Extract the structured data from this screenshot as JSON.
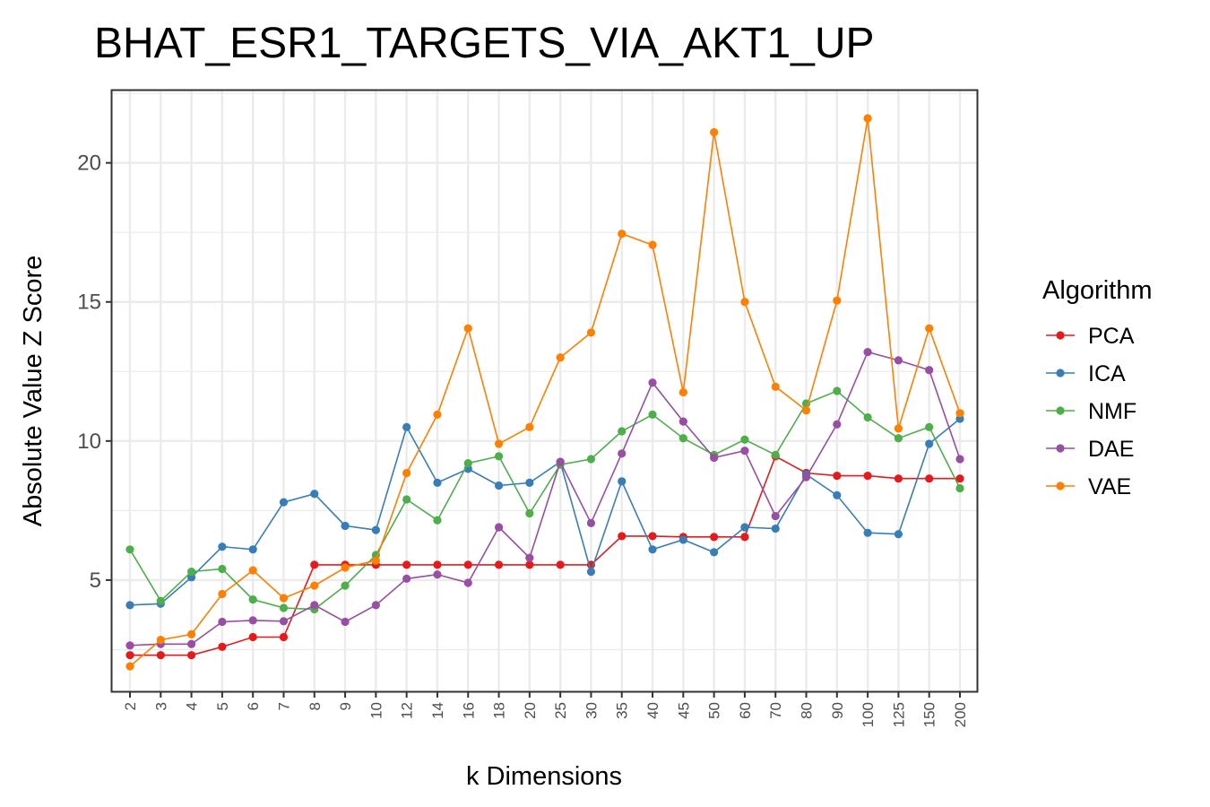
{
  "chart_data": {
    "type": "line",
    "title": "BHAT_ESR1_TARGETS_VIA_AKT1_UP",
    "xlabel": "k Dimensions",
    "ylabel": "Absolute Value Z Score",
    "ylim": [
      1.0,
      22.6
    ],
    "yticks": [
      5,
      10,
      15,
      20
    ],
    "grid": true,
    "legend_title": "Algorithm",
    "legend_position": "right",
    "categories": [
      "2",
      "3",
      "4",
      "5",
      "6",
      "7",
      "8",
      "9",
      "10",
      "12",
      "14",
      "16",
      "18",
      "20",
      "25",
      "30",
      "35",
      "40",
      "45",
      "50",
      "60",
      "70",
      "80",
      "90",
      "100",
      "125",
      "150",
      "200"
    ],
    "series": [
      {
        "name": "PCA",
        "color": "#E41A1C",
        "values": [
          2.3,
          2.3,
          2.3,
          2.6,
          2.95,
          2.95,
          5.55,
          5.55,
          5.55,
          5.55,
          5.55,
          5.55,
          5.55,
          5.55,
          5.55,
          5.55,
          6.58,
          6.58,
          6.55,
          6.55,
          6.55,
          9.45,
          8.85,
          8.75,
          8.75,
          8.65,
          8.65,
          8.65
        ]
      },
      {
        "name": "ICA",
        "color": "#377EB8",
        "values": [
          4.1,
          4.15,
          5.1,
          6.2,
          6.1,
          7.8,
          8.1,
          6.95,
          6.8,
          10.5,
          8.5,
          9.0,
          8.4,
          8.5,
          9.25,
          5.3,
          8.55,
          6.1,
          6.45,
          6.0,
          6.9,
          6.85,
          8.8,
          8.05,
          6.7,
          6.65,
          9.9,
          10.8
        ]
      },
      {
        "name": "NMF",
        "color": "#4DAF4A",
        "values": [
          6.1,
          4.25,
          5.3,
          5.4,
          4.3,
          4.0,
          3.95,
          4.8,
          5.9,
          7.9,
          7.15,
          9.2,
          9.45,
          7.4,
          9.15,
          9.35,
          10.35,
          10.95,
          10.1,
          9.5,
          10.05,
          9.5,
          11.35,
          11.8,
          10.85,
          10.1,
          10.5,
          8.3
        ]
      },
      {
        "name": "DAE",
        "color": "#984EA3",
        "values": [
          2.65,
          2.7,
          2.7,
          3.5,
          3.55,
          3.52,
          4.1,
          3.5,
          4.1,
          5.05,
          5.2,
          4.9,
          6.9,
          5.8,
          9.25,
          7.05,
          9.55,
          12.1,
          10.7,
          9.4,
          9.65,
          7.3,
          8.7,
          10.6,
          13.2,
          12.9,
          12.55,
          9.35
        ]
      },
      {
        "name": "VAE",
        "color": "#FF7F00",
        "values": [
          1.9,
          2.85,
          3.05,
          4.5,
          5.35,
          4.35,
          4.8,
          5.45,
          5.7,
          8.85,
          10.95,
          14.05,
          9.9,
          10.5,
          13.0,
          13.9,
          17.45,
          17.05,
          11.75,
          21.1,
          15.0,
          11.95,
          11.1,
          15.05,
          21.6,
          10.45,
          14.05,
          11.0
        ]
      }
    ]
  }
}
